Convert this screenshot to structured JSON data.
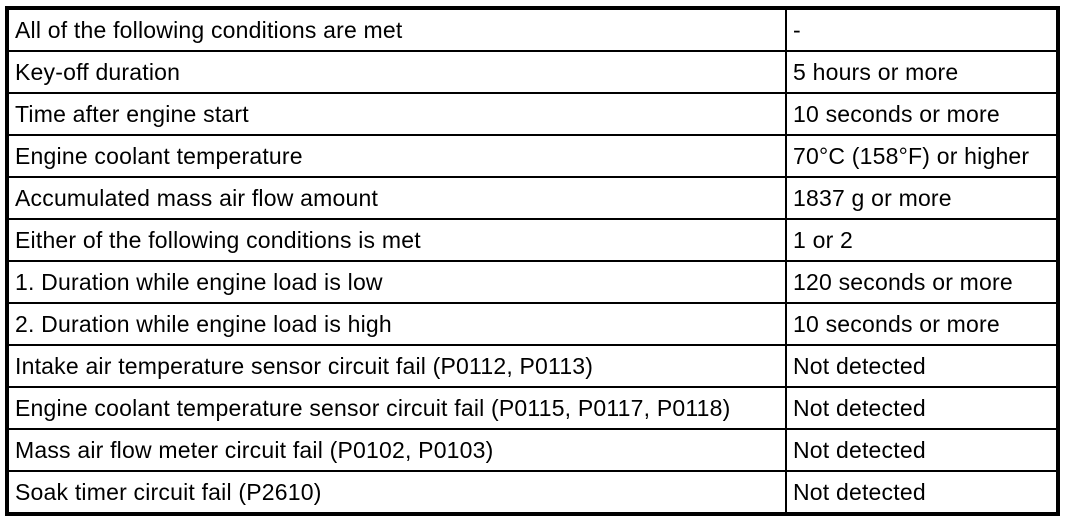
{
  "colors": {
    "background": "#ffffff",
    "border": "#000000",
    "text": "#000000"
  },
  "table": {
    "columns": [
      "condition",
      "value"
    ],
    "rows": [
      {
        "condition": "All of the following conditions are met",
        "value": "-"
      },
      {
        "condition": "Key-off duration",
        "value": "5 hours or more"
      },
      {
        "condition": "Time after engine start",
        "value": "10 seconds or more"
      },
      {
        "condition": "Engine coolant temperature",
        "value": "70°C (158°F) or higher"
      },
      {
        "condition": "Accumulated mass air flow amount",
        "value": "1837 g or more"
      },
      {
        "condition": "Either of the following conditions is met",
        "value": "1 or 2"
      },
      {
        "condition": "1. Duration while engine load is low",
        "value": "120 seconds or more"
      },
      {
        "condition": "2. Duration while engine load is high",
        "value": "10 seconds or more"
      },
      {
        "condition": "Intake air temperature sensor circuit fail (P0112, P0113)",
        "value": "Not detected"
      },
      {
        "condition": "Engine coolant temperature sensor circuit fail (P0115, P0117, P0118)",
        "value": "Not detected"
      },
      {
        "condition": "Mass air flow meter circuit fail (P0102, P0103)",
        "value": "Not detected"
      },
      {
        "condition": "Soak timer circuit fail (P2610)",
        "value": "Not detected"
      }
    ]
  }
}
